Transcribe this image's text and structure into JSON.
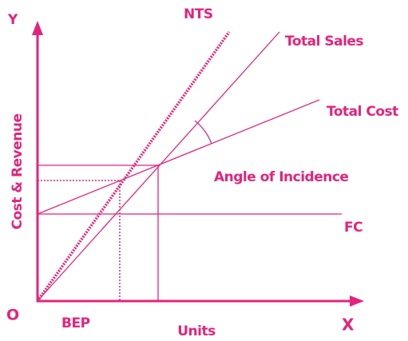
{
  "labels": {
    "y_axis_letter": "Y",
    "x_axis_letter": "X",
    "origin": "O",
    "y_axis": "Cost & Revenue",
    "x_axis": "Units",
    "bep": "BEP",
    "nts": "NTS",
    "total_sales": "Total Sales",
    "total_cost": "Total Cost",
    "fc": "FC",
    "angle": "Angle of Incidence"
  }
}
